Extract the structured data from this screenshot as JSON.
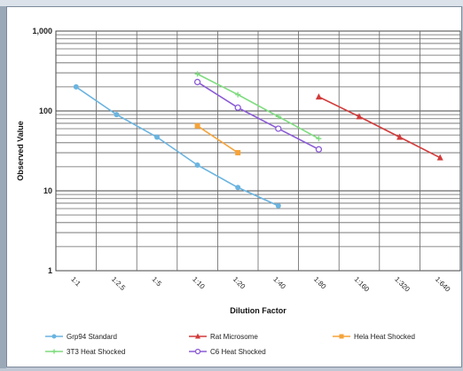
{
  "chart_data": {
    "type": "line",
    "xlabel": "Dilution Factor",
    "ylabel": "Observed Value",
    "yscale": "log",
    "ylim": [
      1,
      1000
    ],
    "yticks": [
      "1",
      "10",
      "100",
      "1,000"
    ],
    "categories": [
      "1:1",
      "1:2.5",
      "1:5",
      "1:10",
      "1:20",
      "1:40",
      "1:80",
      "1:160",
      "1:320",
      "1:640"
    ],
    "grid": true,
    "legend_position": "bottom",
    "series": [
      {
        "name": "Grp94 Standard",
        "color": "#6ab4e0",
        "marker": "circle-filled",
        "x": [
          "1:1",
          "1:2.5",
          "1:5",
          "1:10",
          "1:20",
          "1:40"
        ],
        "values": [
          200,
          90,
          47,
          21,
          11,
          6.5
        ]
      },
      {
        "name": "Rat Microsome",
        "color": "#d23a3a",
        "marker": "triangle",
        "x": [
          "1:80",
          "1:160",
          "1:320",
          "1:640"
        ],
        "values": [
          150,
          85,
          47,
          26
        ]
      },
      {
        "name": "Hela Heat Shocked",
        "color": "#f5a33a",
        "marker": "square",
        "x": [
          "1:10",
          "1:20"
        ],
        "values": [
          65,
          30
        ]
      },
      {
        "name": "3T3 Heat Shocked",
        "color": "#7fdc7f",
        "marker": "plus",
        "x": [
          "1:10",
          "1:20",
          "1:40",
          "1:80"
        ],
        "values": [
          290,
          160,
          85,
          45
        ]
      },
      {
        "name": "C6 Heat Shocked",
        "color": "#8a5ad6",
        "marker": "circle-open",
        "x": [
          "1:10",
          "1:20",
          "1:40",
          "1:80"
        ],
        "values": [
          230,
          110,
          60,
          33
        ]
      }
    ]
  }
}
